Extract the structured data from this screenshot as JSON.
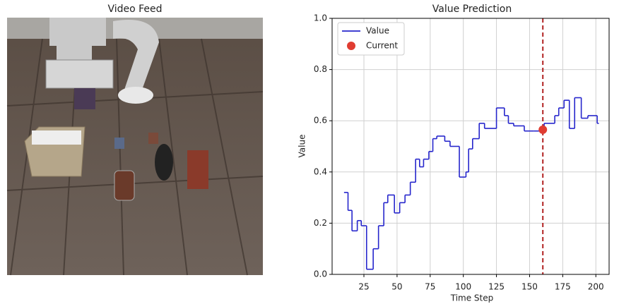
{
  "video_feed": {
    "title": "Video Feed"
  },
  "chart_data": {
    "type": "line",
    "title": "Value Prediction",
    "x_label": "Time Step",
    "y_label": "Value",
    "drawstyle": "steps-post",
    "grid": true,
    "legend": "upper left",
    "xlim": [
      1,
      210
    ],
    "xticks": [
      25,
      50,
      75,
      100,
      125,
      150,
      175,
      200
    ],
    "ylim": [
      0,
      1
    ],
    "yticks": [
      {
        "value": 0,
        "label": "0.0"
      },
      {
        "value": 0.2,
        "label": "0.2"
      },
      {
        "value": 0.4,
        "label": "0.4"
      },
      {
        "value": 0.6,
        "label": "0.6"
      },
      {
        "value": 0.8,
        "label": "0.8"
      },
      {
        "value": 1,
        "label": "1.0"
      }
    ],
    "series": [
      {
        "name": "Value",
        "color": "#2626cc",
        "type": "line",
        "x": [
          10,
          13,
          16,
          20,
          23,
          27,
          32,
          36,
          40,
          43,
          48,
          52,
          56,
          60,
          64,
          67,
          70,
          74,
          77,
          80,
          86,
          90,
          97,
          102,
          104,
          107,
          112,
          116,
          125,
          131,
          134,
          138,
          146,
          153,
          161,
          169,
          172,
          176,
          180,
          184,
          189,
          194,
          201,
          202
        ],
        "values": [
          0.32,
          0.25,
          0.17,
          0.21,
          0.19,
          0.02,
          0.1,
          0.19,
          0.28,
          0.31,
          0.24,
          0.28,
          0.31,
          0.36,
          0.45,
          0.42,
          0.45,
          0.48,
          0.53,
          0.54,
          0.52,
          0.5,
          0.38,
          0.4,
          0.49,
          0.53,
          0.59,
          0.57,
          0.65,
          0.62,
          0.59,
          0.58,
          0.56,
          0.56,
          0.59,
          0.62,
          0.65,
          0.68,
          0.57,
          0.69,
          0.61,
          0.62,
          0.59,
          0.59
        ]
      },
      {
        "name": "Current",
        "color": "#e03c31",
        "type": "scatter",
        "x": [
          160
        ],
        "values": [
          0.565
        ]
      }
    ]
  }
}
